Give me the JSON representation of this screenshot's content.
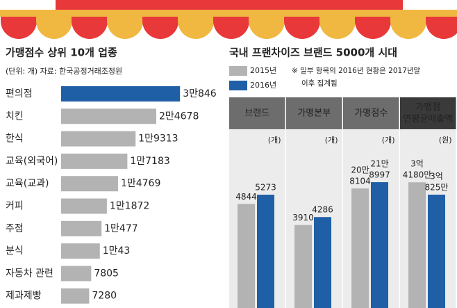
{
  "chart_data": [
    {
      "type": "hbar",
      "title": "가맹점수 상위 10개 업종",
      "subtitle": "(단위: 개) 자료: 한국공정거래조정원",
      "categories": [
        "편의점",
        "치킨",
        "한식",
        "교육(외국어)",
        "교육(교과)",
        "커피",
        "주점",
        "분식",
        "자동차 관련",
        "제과제빵"
      ],
      "values": [
        30846,
        24678,
        19313,
        17183,
        14769,
        11872,
        10477,
        10043,
        7805,
        7280
      ],
      "value_labels": [
        "3만846",
        "2만4678",
        "1만9313",
        "1만7183",
        "1만4769",
        "1만1872",
        "1만477",
        "1만43",
        "7805",
        "7280"
      ],
      "color": "#b3b3b3",
      "highlight_color": "#1f5fa6",
      "highlight_label_color": "#d9302c",
      "xlim": [
        0,
        40000
      ]
    },
    {
      "type": "panel-bar",
      "title": "국내 프랜차이즈 브랜드 5000개 시대",
      "series": [
        {
          "name": "2015년",
          "color": "#b3b3b3"
        },
        {
          "name": "2016년",
          "color": "#1f5fa6"
        }
      ],
      "note": [
        "※ 일부 항목의 2016년 현황은 2017년말",
        "이후 집계됨"
      ],
      "panels": [
        {
          "label": [
            "브랜드"
          ],
          "unit": "(개)",
          "values": [
            4844,
            5273
          ],
          "ylim": [
            0,
            7700
          ]
        },
        {
          "label": [
            "가맹본부"
          ],
          "unit": "(개)",
          "values": [
            3910,
            4286
          ],
          "ylim": [
            0,
            7800
          ]
        },
        {
          "label": [
            "가맹점수"
          ],
          "unit": "(개)",
          "values": [
            208104,
            218997
          ],
          "value_labels": [
            [
              "20만",
              "8104"
            ],
            [
              "21만",
              "8997"
            ]
          ],
          "ylim": [
            0,
            288000
          ]
        },
        {
          "label": [
            "가맹점",
            "연평균매출액"
          ],
          "unit": "(원)",
          "values": [
            341800000,
            308250000
          ],
          "value_labels": [
            [
              "3억",
              "4180만"
            ],
            [
              "3억",
              "825만"
            ]
          ],
          "ylim": [
            0,
            450000000
          ]
        }
      ]
    }
  ]
}
